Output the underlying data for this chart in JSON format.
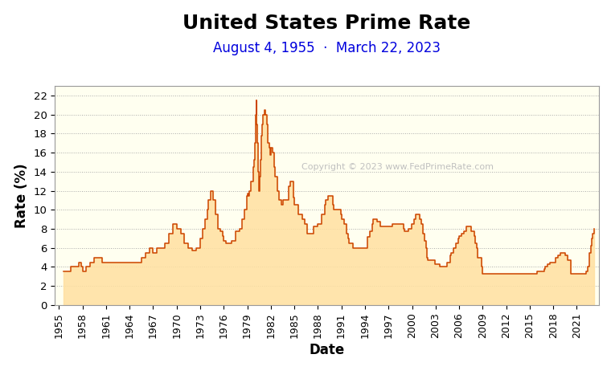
{
  "title": "United States Prime Rate",
  "subtitle": "August 4, 1955  ·  March 22, 2023",
  "xlabel": "Date",
  "ylabel": "Rate (%)",
  "title_fontsize": 18,
  "subtitle_fontsize": 12,
  "label_fontsize": 12,
  "line_color": "#CC4400",
  "fill_color": "#FFE0A0",
  "background_color": "#FFFFF0",
  "outer_background": "#FFFFFF",
  "grid_color": "#AAAAAA",
  "copyright_text": "Copyright © 2023 www.FedPrimeRate.com",
  "copyright_color": "#C0C0C0",
  "title_color": "#000000",
  "subtitle_color": "#0000DD",
  "axis_label_color": "#000000",
  "tick_color": "#000000",
  "ylim": [
    0,
    23
  ],
  "yticks": [
    0,
    2,
    4,
    6,
    8,
    10,
    12,
    14,
    16,
    18,
    20,
    22
  ],
  "xlim": [
    1954.5,
    2023.8
  ],
  "xtick_years": [
    1955,
    1958,
    1961,
    1964,
    1967,
    1970,
    1973,
    1976,
    1979,
    1982,
    1985,
    1988,
    1991,
    1994,
    1997,
    2000,
    2003,
    2006,
    2009,
    2012,
    2015,
    2018,
    2021
  ],
  "data": [
    [
      1955.6,
      3.5
    ],
    [
      1956.0,
      3.5
    ],
    [
      1956.5,
      4.0
    ],
    [
      1957.0,
      4.0
    ],
    [
      1957.5,
      4.5
    ],
    [
      1957.8,
      4.0
    ],
    [
      1958.0,
      3.5
    ],
    [
      1958.5,
      4.0
    ],
    [
      1959.0,
      4.5
    ],
    [
      1959.5,
      5.0
    ],
    [
      1960.0,
      5.0
    ],
    [
      1960.5,
      4.5
    ],
    [
      1961.0,
      4.5
    ],
    [
      1962.0,
      4.5
    ],
    [
      1963.0,
      4.5
    ],
    [
      1964.0,
      4.5
    ],
    [
      1965.0,
      4.5
    ],
    [
      1965.5,
      5.0
    ],
    [
      1966.0,
      5.5
    ],
    [
      1966.5,
      6.0
    ],
    [
      1967.0,
      5.5
    ],
    [
      1967.5,
      6.0
    ],
    [
      1968.0,
      6.0
    ],
    [
      1968.5,
      6.5
    ],
    [
      1969.0,
      7.5
    ],
    [
      1969.5,
      8.5
    ],
    [
      1970.0,
      8.0
    ],
    [
      1970.5,
      7.5
    ],
    [
      1971.0,
      6.5
    ],
    [
      1971.5,
      6.0
    ],
    [
      1972.0,
      5.75
    ],
    [
      1972.5,
      6.0
    ],
    [
      1973.0,
      7.0
    ],
    [
      1973.3,
      8.0
    ],
    [
      1973.6,
      9.0
    ],
    [
      1973.9,
      10.0
    ],
    [
      1974.0,
      11.0
    ],
    [
      1974.3,
      12.0
    ],
    [
      1974.6,
      11.0
    ],
    [
      1974.9,
      10.25
    ],
    [
      1975.0,
      9.5
    ],
    [
      1975.3,
      8.0
    ],
    [
      1975.6,
      7.75
    ],
    [
      1975.9,
      7.25
    ],
    [
      1976.0,
      6.75
    ],
    [
      1976.3,
      6.5
    ],
    [
      1976.6,
      6.5
    ],
    [
      1977.0,
      6.75
    ],
    [
      1977.5,
      7.75
    ],
    [
      1978.0,
      8.0
    ],
    [
      1978.3,
      9.0
    ],
    [
      1978.6,
      10.0
    ],
    [
      1978.9,
      11.5
    ],
    [
      1979.0,
      11.75
    ],
    [
      1979.2,
      11.5
    ],
    [
      1979.3,
      12.0
    ],
    [
      1979.5,
      13.0
    ],
    [
      1979.6,
      13.0
    ],
    [
      1979.8,
      14.5
    ],
    [
      1979.9,
      15.25
    ],
    [
      1980.0,
      17.0
    ],
    [
      1980.1,
      20.0
    ],
    [
      1980.15,
      21.5
    ],
    [
      1980.2,
      19.0
    ],
    [
      1980.3,
      17.0
    ],
    [
      1980.4,
      14.0
    ],
    [
      1980.5,
      12.0
    ],
    [
      1980.6,
      13.5
    ],
    [
      1980.7,
      15.25
    ],
    [
      1980.8,
      17.75
    ],
    [
      1980.9,
      19.0
    ],
    [
      1981.0,
      20.0
    ],
    [
      1981.2,
      20.5
    ],
    [
      1981.3,
      20.0
    ],
    [
      1981.5,
      19.0
    ],
    [
      1981.6,
      17.0
    ],
    [
      1981.8,
      16.5
    ],
    [
      1981.9,
      15.75
    ],
    [
      1982.0,
      16.5
    ],
    [
      1982.1,
      16.5
    ],
    [
      1982.2,
      16.0
    ],
    [
      1982.4,
      14.5
    ],
    [
      1982.5,
      13.5
    ],
    [
      1982.6,
      13.5
    ],
    [
      1982.8,
      12.0
    ],
    [
      1983.0,
      11.0
    ],
    [
      1983.3,
      10.5
    ],
    [
      1983.6,
      11.0
    ],
    [
      1983.9,
      11.0
    ],
    [
      1984.0,
      11.0
    ],
    [
      1984.3,
      12.5
    ],
    [
      1984.5,
      13.0
    ],
    [
      1984.6,
      13.0
    ],
    [
      1984.9,
      11.25
    ],
    [
      1985.0,
      10.5
    ],
    [
      1985.5,
      9.5
    ],
    [
      1985.9,
      9.5
    ],
    [
      1986.0,
      9.0
    ],
    [
      1986.3,
      8.5
    ],
    [
      1986.6,
      7.5
    ],
    [
      1987.0,
      7.5
    ],
    [
      1987.5,
      8.25
    ],
    [
      1988.0,
      8.5
    ],
    [
      1988.5,
      9.5
    ],
    [
      1988.9,
      10.5
    ],
    [
      1989.0,
      11.0
    ],
    [
      1989.3,
      11.5
    ],
    [
      1989.5,
      11.5
    ],
    [
      1989.9,
      10.5
    ],
    [
      1990.0,
      10.0
    ],
    [
      1990.5,
      10.0
    ],
    [
      1990.9,
      9.5
    ],
    [
      1991.0,
      9.0
    ],
    [
      1991.3,
      8.5
    ],
    [
      1991.6,
      7.5
    ],
    [
      1991.9,
      7.0
    ],
    [
      1992.0,
      6.5
    ],
    [
      1992.5,
      6.0
    ],
    [
      1993.0,
      6.0
    ],
    [
      1994.0,
      6.0
    ],
    [
      1994.3,
      7.15
    ],
    [
      1994.6,
      7.75
    ],
    [
      1994.9,
      8.5
    ],
    [
      1995.0,
      9.0
    ],
    [
      1995.5,
      8.75
    ],
    [
      1996.0,
      8.25
    ],
    [
      1996.5,
      8.25
    ],
    [
      1997.0,
      8.25
    ],
    [
      1997.5,
      8.5
    ],
    [
      1998.0,
      8.5
    ],
    [
      1998.5,
      8.5
    ],
    [
      1998.9,
      8.0
    ],
    [
      1999.0,
      7.75
    ],
    [
      1999.5,
      8.0
    ],
    [
      1999.9,
      8.5
    ],
    [
      2000.0,
      8.5
    ],
    [
      2000.3,
      9.0
    ],
    [
      2000.5,
      9.5
    ],
    [
      2000.9,
      9.5
    ],
    [
      2001.0,
      9.0
    ],
    [
      2001.2,
      8.5
    ],
    [
      2001.4,
      7.5
    ],
    [
      2001.6,
      6.75
    ],
    [
      2001.8,
      6.0
    ],
    [
      2001.9,
      5.0
    ],
    [
      2002.0,
      4.75
    ],
    [
      2002.5,
      4.75
    ],
    [
      2002.9,
      4.25
    ],
    [
      2003.0,
      4.25
    ],
    [
      2003.5,
      4.0
    ],
    [
      2004.0,
      4.0
    ],
    [
      2004.5,
      4.5
    ],
    [
      2004.9,
      5.25
    ],
    [
      2005.0,
      5.5
    ],
    [
      2005.3,
      6.0
    ],
    [
      2005.6,
      6.5
    ],
    [
      2005.9,
      7.0
    ],
    [
      2006.0,
      7.25
    ],
    [
      2006.3,
      7.5
    ],
    [
      2006.6,
      7.75
    ],
    [
      2006.9,
      8.25
    ],
    [
      2007.0,
      8.25
    ],
    [
      2007.5,
      7.75
    ],
    [
      2007.9,
      7.25
    ],
    [
      2008.0,
      6.5
    ],
    [
      2008.2,
      6.0
    ],
    [
      2008.4,
      5.0
    ],
    [
      2008.6,
      5.0
    ],
    [
      2008.9,
      4.0
    ],
    [
      2009.0,
      3.25
    ],
    [
      2009.5,
      3.25
    ],
    [
      2015.0,
      3.25
    ],
    [
      2015.9,
      3.5
    ],
    [
      2016.0,
      3.5
    ],
    [
      2016.9,
      3.75
    ],
    [
      2017.0,
      4.0
    ],
    [
      2017.3,
      4.25
    ],
    [
      2017.6,
      4.5
    ],
    [
      2017.9,
      4.5
    ],
    [
      2018.0,
      4.5
    ],
    [
      2018.3,
      5.0
    ],
    [
      2018.6,
      5.25
    ],
    [
      2018.9,
      5.5
    ],
    [
      2019.0,
      5.5
    ],
    [
      2019.5,
      5.25
    ],
    [
      2019.8,
      4.75
    ],
    [
      2019.9,
      4.75
    ],
    [
      2020.0,
      4.75
    ],
    [
      2020.2,
      3.25
    ],
    [
      2020.5,
      3.25
    ],
    [
      2022.0,
      3.25
    ],
    [
      2022.2,
      3.5
    ],
    [
      2022.4,
      4.0
    ],
    [
      2022.6,
      5.5
    ],
    [
      2022.8,
      6.25
    ],
    [
      2022.9,
      7.0
    ],
    [
      2023.0,
      7.5
    ],
    [
      2023.2,
      8.0
    ]
  ]
}
